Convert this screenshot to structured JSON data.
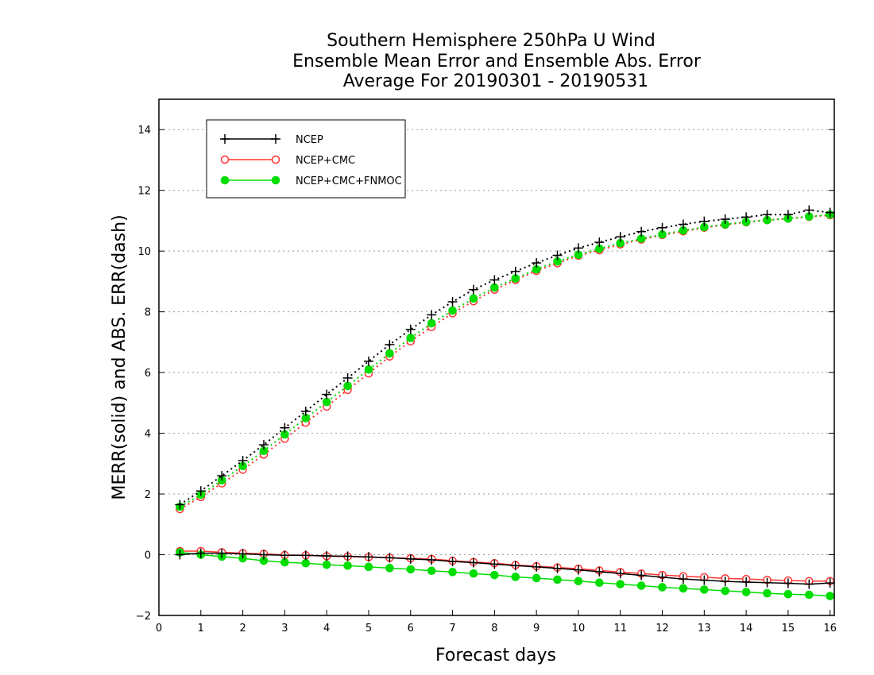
{
  "chart_data": {
    "type": "line",
    "title": [
      "Southern Hemisphere 250hPa U Wind",
      "Ensemble Mean Error and Ensemble Abs. Error",
      "Average For 20190301 - 20190531"
    ],
    "xlabel": "Forecast days",
    "ylabel": "MERR(solid) and ABS. ERR(dash)",
    "xlim": [
      0,
      16.1
    ],
    "ylim": [
      -2,
      15
    ],
    "xticks": [
      0,
      1,
      2,
      3,
      4,
      5,
      6,
      7,
      8,
      9,
      10,
      11,
      12,
      13,
      14,
      15,
      16
    ],
    "yticks": [
      -2,
      0,
      2,
      4,
      6,
      8,
      10,
      12,
      14
    ],
    "grid": "horizontal dotted",
    "legend_position": "top-left",
    "x": [
      0.5,
      1,
      1.5,
      2,
      2.5,
      3,
      3.5,
      4,
      4.5,
      5,
      5.5,
      6,
      6.5,
      7,
      7.5,
      8,
      8.5,
      9,
      9.5,
      10,
      10.5,
      11,
      11.5,
      12,
      12.5,
      13,
      13.5,
      14,
      14.5,
      15,
      15.5,
      16
    ],
    "series": [
      {
        "name": "NCEP",
        "color": "#000000",
        "marker": "plus",
        "mean_error": [
          0.0,
          0.05,
          0.05,
          0.03,
          0.0,
          -0.02,
          -0.02,
          -0.04,
          -0.05,
          -0.07,
          -0.1,
          -0.14,
          -0.17,
          -0.22,
          -0.26,
          -0.31,
          -0.36,
          -0.4,
          -0.45,
          -0.5,
          -0.56,
          -0.62,
          -0.68,
          -0.74,
          -0.8,
          -0.84,
          -0.88,
          -0.9,
          -0.92,
          -0.94,
          -0.97,
          -0.93
        ],
        "abs_error": [
          1.65,
          2.1,
          2.6,
          3.1,
          3.62,
          4.18,
          4.72,
          5.28,
          5.82,
          6.37,
          6.92,
          7.42,
          7.9,
          8.33,
          8.73,
          9.05,
          9.33,
          9.61,
          9.86,
          10.1,
          10.29,
          10.47,
          10.64,
          10.77,
          10.88,
          10.98,
          11.05,
          11.12,
          11.2,
          11.2,
          11.35,
          11.27
        ]
      },
      {
        "name": "NCEP+CMC",
        "color": "#ff3333",
        "marker": "open-circle",
        "mean_error": [
          0.12,
          0.12,
          0.08,
          0.05,
          0.03,
          -0.01,
          -0.02,
          -0.05,
          -0.06,
          -0.08,
          -0.1,
          -0.12,
          -0.14,
          -0.2,
          -0.24,
          -0.28,
          -0.34,
          -0.38,
          -0.42,
          -0.46,
          -0.52,
          -0.57,
          -0.62,
          -0.67,
          -0.71,
          -0.74,
          -0.78,
          -0.8,
          -0.83,
          -0.85,
          -0.87,
          -0.87
        ],
        "abs_error": [
          1.5,
          1.9,
          2.35,
          2.8,
          3.3,
          3.82,
          4.35,
          4.88,
          5.43,
          5.97,
          6.53,
          7.03,
          7.5,
          7.95,
          8.35,
          8.73,
          9.05,
          9.35,
          9.6,
          9.85,
          10.03,
          10.22,
          10.38,
          10.53,
          10.65,
          10.77,
          10.87,
          10.95,
          11.02,
          11.07,
          11.13,
          11.18
        ]
      },
      {
        "name": "NCEP+CMC+FNMOC",
        "color": "#00dd00",
        "marker": "filled-circle",
        "mean_error": [
          0.08,
          0.0,
          -0.06,
          -0.12,
          -0.2,
          -0.25,
          -0.28,
          -0.33,
          -0.36,
          -0.4,
          -0.44,
          -0.48,
          -0.53,
          -0.57,
          -0.62,
          -0.67,
          -0.73,
          -0.77,
          -0.82,
          -0.87,
          -0.92,
          -0.97,
          -1.02,
          -1.07,
          -1.11,
          -1.15,
          -1.19,
          -1.23,
          -1.27,
          -1.3,
          -1.32,
          -1.36
        ],
        "abs_error": [
          1.58,
          1.98,
          2.45,
          2.92,
          3.42,
          3.96,
          4.5,
          5.03,
          5.56,
          6.1,
          6.63,
          7.14,
          7.62,
          8.04,
          8.44,
          8.8,
          9.1,
          9.4,
          9.66,
          9.88,
          10.08,
          10.26,
          10.41,
          10.55,
          10.68,
          10.79,
          10.88,
          10.96,
          11.02,
          11.07,
          11.14,
          11.2
        ]
      }
    ]
  }
}
